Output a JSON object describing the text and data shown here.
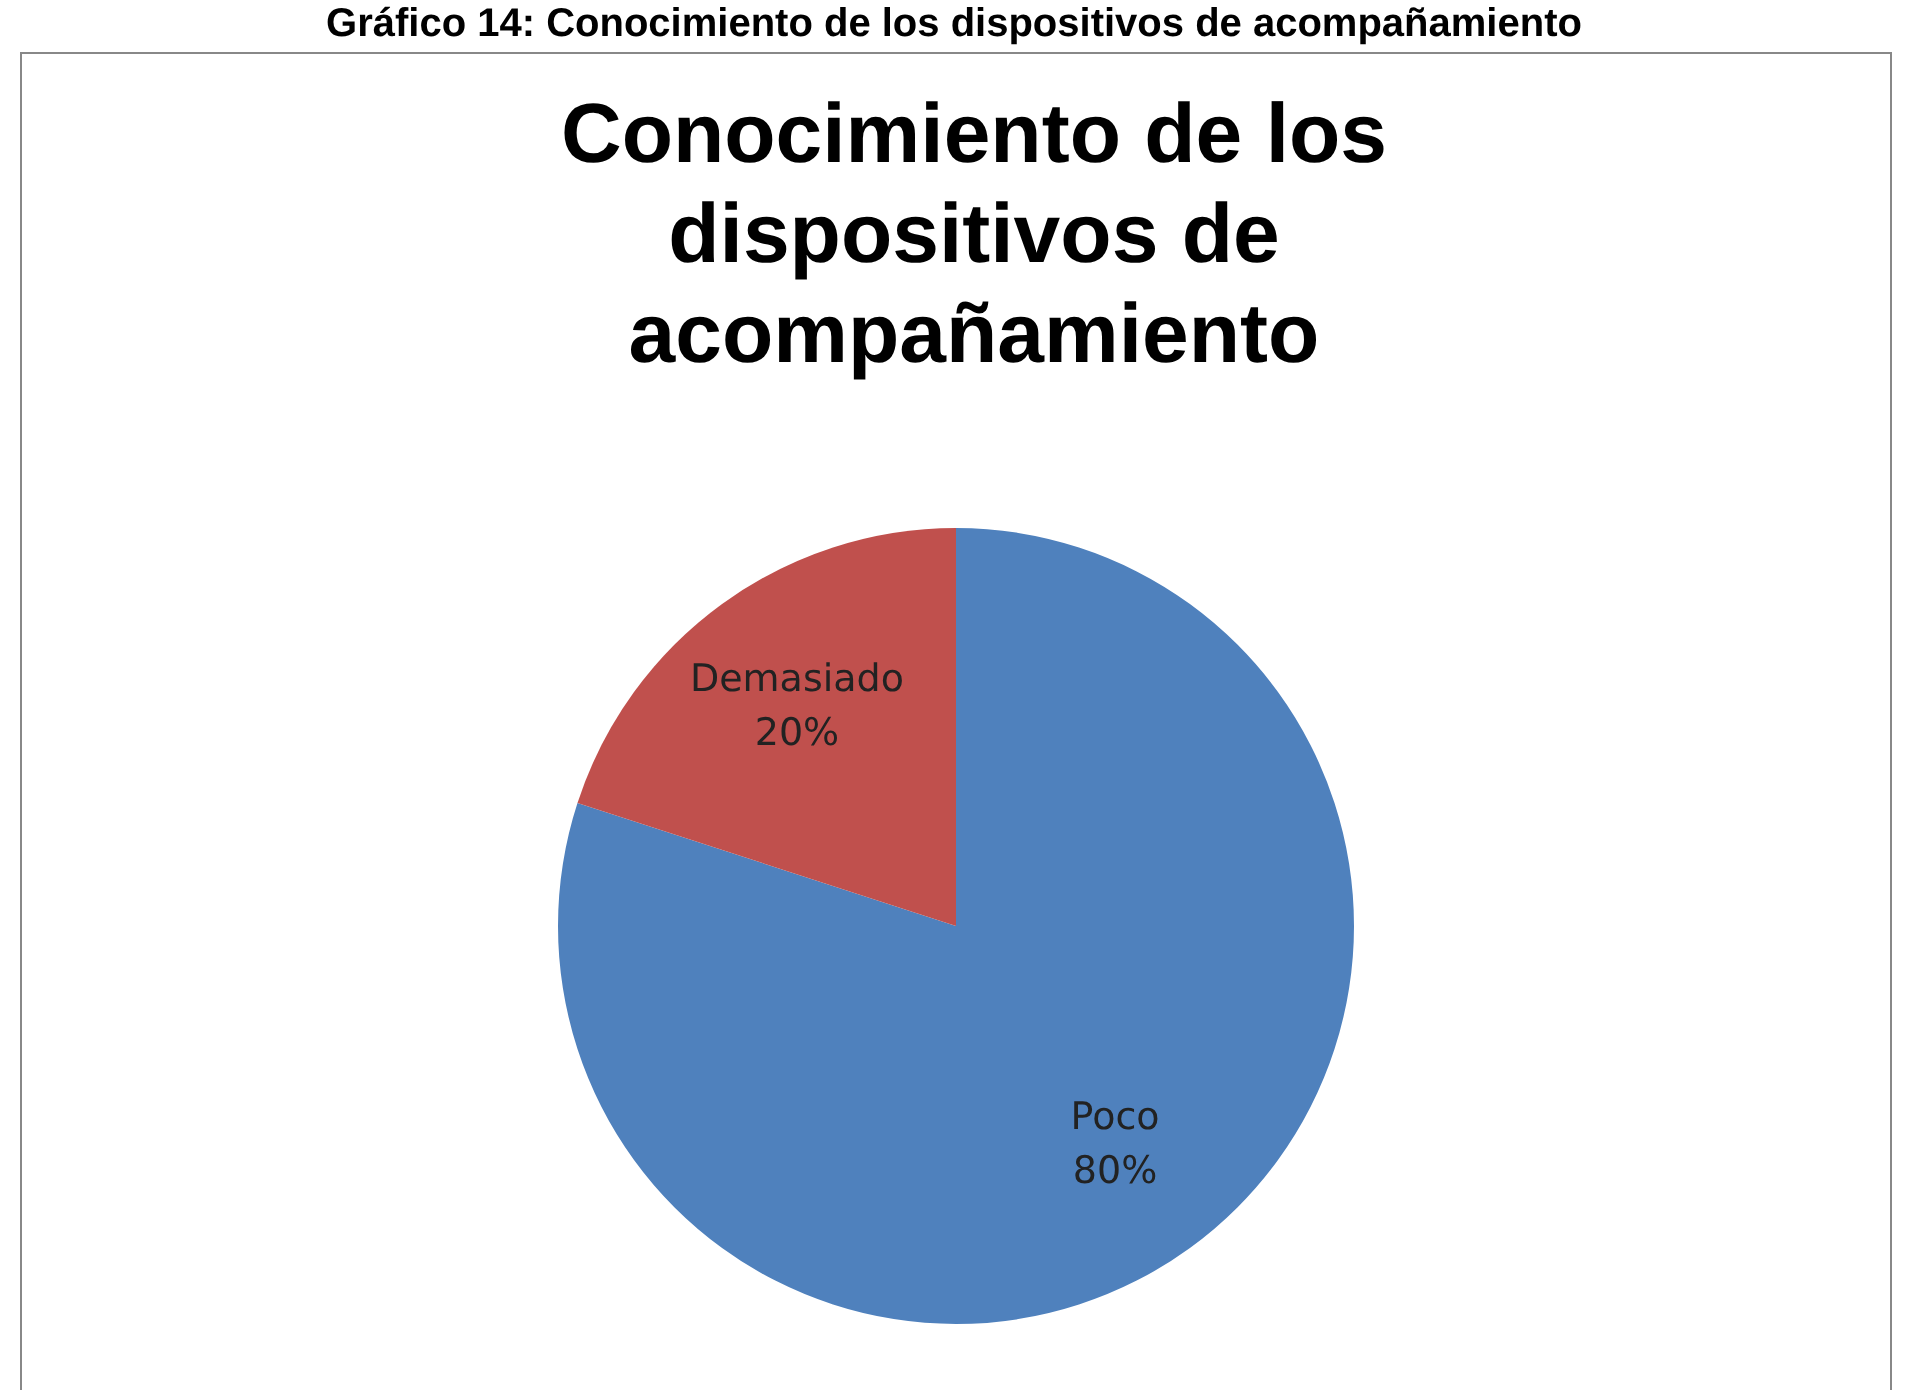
{
  "chart_data": {
    "type": "pie",
    "title": "Conocimiento de los dispositivos de acompañamiento",
    "annotations": [
      "Gráfico 14: Conocimiento de los dispositivos de acompañamiento"
    ],
    "categories": [
      "Poco",
      "Demasiado"
    ],
    "values": [
      80,
      20
    ],
    "colors": [
      "#4f81bd",
      "#c0504d"
    ],
    "value_labels": [
      "80%",
      "20%"
    ],
    "legend": false
  }
}
